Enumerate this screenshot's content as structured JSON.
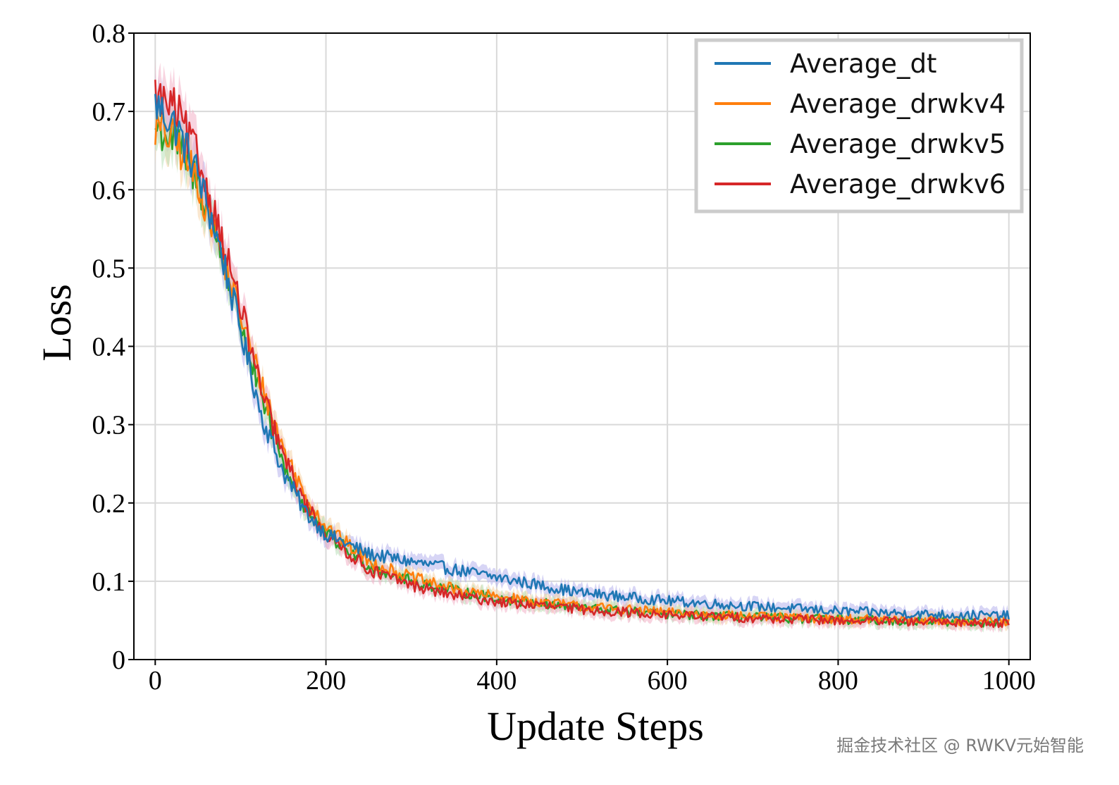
{
  "chart_data": {
    "type": "line",
    "xlabel": "Update Steps",
    "ylabel": "Loss",
    "xlim": [
      -25,
      1025
    ],
    "ylim": [
      0,
      0.8
    ],
    "xticks": [
      0,
      200,
      400,
      600,
      800,
      1000
    ],
    "xtick_labels": [
      "0",
      "200",
      "400",
      "600",
      "800",
      "1000"
    ],
    "yticks": [
      0,
      0.1,
      0.2,
      0.3,
      0.4,
      0.5,
      0.6,
      0.7,
      0.8
    ],
    "ytick_labels": [
      "0",
      "0.1",
      "0.2",
      "0.3",
      "0.4",
      "0.5",
      "0.6",
      "0.7",
      "0.8"
    ],
    "grid": true,
    "legend_position": "top-right",
    "x": [
      0,
      25,
      50,
      75,
      100,
      125,
      150,
      175,
      200,
      250,
      300,
      350,
      400,
      500,
      600,
      700,
      800,
      900,
      1000
    ],
    "series": [
      {
        "name": "Average_dt",
        "color": "#1f77b4",
        "band": "#b6b3ec",
        "values": [
          0.71,
          0.68,
          0.62,
          0.53,
          0.42,
          0.31,
          0.24,
          0.19,
          0.16,
          0.135,
          0.125,
          0.115,
          0.105,
          0.085,
          0.075,
          0.068,
          0.062,
          0.058,
          0.056
        ]
      },
      {
        "name": "Average_drwkv4",
        "color": "#ff7f0e",
        "band": "#f6d3a8",
        "values": [
          0.68,
          0.66,
          0.61,
          0.53,
          0.44,
          0.35,
          0.27,
          0.21,
          0.17,
          0.125,
          0.105,
          0.09,
          0.08,
          0.068,
          0.06,
          0.055,
          0.052,
          0.05,
          0.048
        ]
      },
      {
        "name": "Average_drwkv5",
        "color": "#2ca02c",
        "band": "#b8e0b8",
        "values": [
          0.68,
          0.66,
          0.61,
          0.53,
          0.43,
          0.33,
          0.25,
          0.195,
          0.16,
          0.12,
          0.1,
          0.088,
          0.078,
          0.066,
          0.058,
          0.054,
          0.051,
          0.049,
          0.047
        ]
      },
      {
        "name": "Average_drwkv6",
        "color": "#d62728",
        "band": "#f2b0c6",
        "values": [
          0.72,
          0.7,
          0.64,
          0.55,
          0.45,
          0.34,
          0.26,
          0.2,
          0.16,
          0.115,
          0.095,
          0.082,
          0.074,
          0.064,
          0.057,
          0.053,
          0.05,
          0.048,
          0.047
        ]
      }
    ]
  },
  "watermark": "掘金技术社区 @ RWKV元始智能"
}
